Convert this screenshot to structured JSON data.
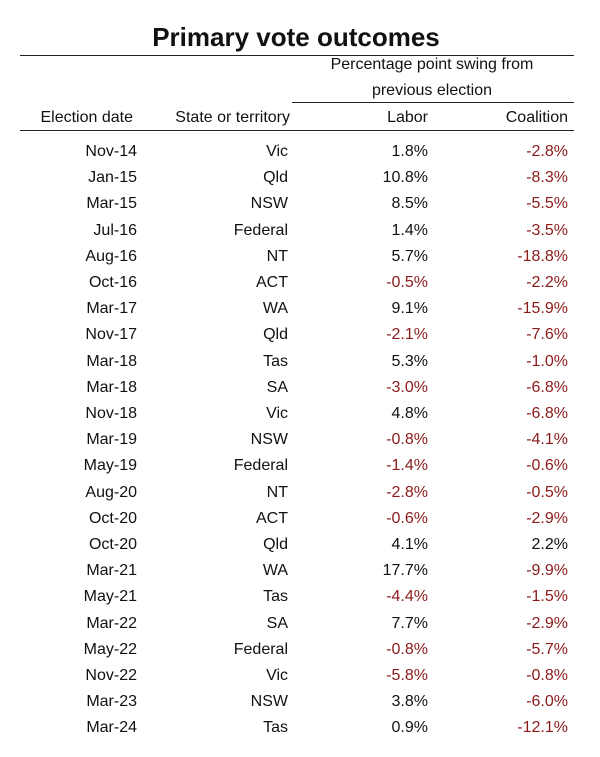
{
  "chart_data": {
    "type": "table",
    "title": "Primary vote outcomes",
    "group_header": "Percentage point swing from previous election",
    "columns": [
      "Election date",
      "State or territory",
      "Labor",
      "Coalition"
    ],
    "colors": {
      "negative": "#8b1a1a",
      "positive": "#111111"
    },
    "rows": [
      {
        "date": "Nov-14",
        "state": "Vic",
        "labor": "1.8%",
        "coalition": "-2.8%"
      },
      {
        "date": "Jan-15",
        "state": "Qld",
        "labor": "10.8%",
        "coalition": "-8.3%"
      },
      {
        "date": "Mar-15",
        "state": "NSW",
        "labor": "8.5%",
        "coalition": "-5.5%"
      },
      {
        "date": "Jul-16",
        "state": "Federal",
        "labor": "1.4%",
        "coalition": "-3.5%"
      },
      {
        "date": "Aug-16",
        "state": "NT",
        "labor": "5.7%",
        "coalition": "-18.8%"
      },
      {
        "date": "Oct-16",
        "state": "ACT",
        "labor": "-0.5%",
        "coalition": "-2.2%"
      },
      {
        "date": "Mar-17",
        "state": "WA",
        "labor": "9.1%",
        "coalition": "-15.9%"
      },
      {
        "date": "Nov-17",
        "state": "Qld",
        "labor": "-2.1%",
        "coalition": "-7.6%"
      },
      {
        "date": "Mar-18",
        "state": "Tas",
        "labor": "5.3%",
        "coalition": "-1.0%"
      },
      {
        "date": "Mar-18",
        "state": "SA",
        "labor": "-3.0%",
        "coalition": "-6.8%"
      },
      {
        "date": "Nov-18",
        "state": "Vic",
        "labor": "4.8%",
        "coalition": "-6.8%"
      },
      {
        "date": "Mar-19",
        "state": "NSW",
        "labor": "-0.8%",
        "coalition": "-4.1%"
      },
      {
        "date": "May-19",
        "state": "Federal",
        "labor": "-1.4%",
        "coalition": "-0.6%"
      },
      {
        "date": "Aug-20",
        "state": "NT",
        "labor": "-2.8%",
        "coalition": "-0.5%"
      },
      {
        "date": "Oct-20",
        "state": "ACT",
        "labor": "-0.6%",
        "coalition": "-2.9%"
      },
      {
        "date": "Oct-20",
        "state": "Qld",
        "labor": "4.1%",
        "coalition": "2.2%"
      },
      {
        "date": "Mar-21",
        "state": "WA",
        "labor": "17.7%",
        "coalition": "-9.9%"
      },
      {
        "date": "May-21",
        "state": "Tas",
        "labor": "-4.4%",
        "coalition": "-1.5%"
      },
      {
        "date": "Mar-22",
        "state": "SA",
        "labor": "7.7%",
        "coalition": "-2.9%"
      },
      {
        "date": "May-22",
        "state": "Federal",
        "labor": "-0.8%",
        "coalition": "-5.7%"
      },
      {
        "date": "Nov-22",
        "state": "Vic",
        "labor": "-5.8%",
        "coalition": "-0.8%"
      },
      {
        "date": "Mar-23",
        "state": "NSW",
        "labor": "3.8%",
        "coalition": "-6.0%"
      },
      {
        "date": "Mar-24",
        "state": "Tas",
        "labor": "0.9%",
        "coalition": "-12.1%"
      }
    ]
  }
}
